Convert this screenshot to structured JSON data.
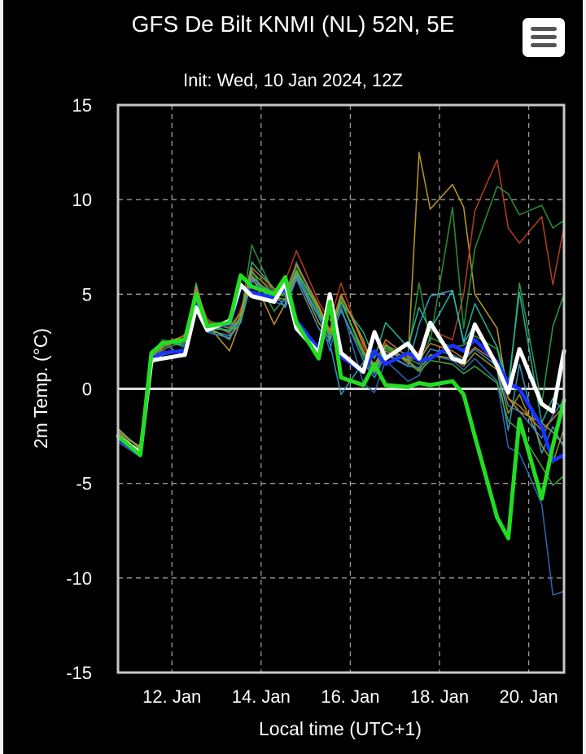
{
  "header": {
    "title": "GFS De Bilt KNMI (NL) 52N, 5E",
    "subtitle": "Init: Wed, 10 Jan 2024, 12Z"
  },
  "menu_button": {
    "icon": "hamburger-menu-icon"
  },
  "colors": {
    "background": "#000000",
    "plot_border": "#c8c8c8",
    "grid": "#9a9a9a",
    "zero_line": "#dddddd",
    "mean": "#ffffff",
    "control": "#22dd22",
    "operational": "#1a33ff"
  },
  "chart_data": {
    "type": "line",
    "title": "GFS De Bilt KNMI (NL) 52N, 5E",
    "subtitle": "Init: Wed, 10 Jan 2024, 12Z",
    "xlabel": "Local time (UTC+1)",
    "ylabel": "2m Temp. (°C)",
    "ylim": [
      -15,
      15
    ],
    "yticks": [
      -15,
      -10,
      -5,
      0,
      5,
      10,
      15
    ],
    "xlim": [
      "2024-01-10 19:00",
      "2024-01-20 19:00"
    ],
    "xticks": [
      {
        "date": "2024-01-12",
        "label": "12. Jan"
      },
      {
        "date": "2024-01-14",
        "label": "14. Jan"
      },
      {
        "date": "2024-01-16",
        "label": "16. Jan"
      },
      {
        "date": "2024-01-18",
        "label": "18. Jan"
      },
      {
        "date": "2024-01-20",
        "label": "20. Jan"
      }
    ],
    "grid": true,
    "x": [
      "2024-01-10 19:00",
      "2024-01-11 07:00",
      "2024-01-11 13:00",
      "2024-01-11 19:00",
      "2024-01-12 07:00",
      "2024-01-12 13:00",
      "2024-01-12 19:00",
      "2024-01-13 07:00",
      "2024-01-13 13:00",
      "2024-01-13 19:00",
      "2024-01-14 07:00",
      "2024-01-14 13:00",
      "2024-01-14 19:00",
      "2024-01-15 07:00",
      "2024-01-15 13:00",
      "2024-01-15 19:00",
      "2024-01-16 07:00",
      "2024-01-16 13:00",
      "2024-01-16 19:00",
      "2024-01-17 07:00",
      "2024-01-17 13:00",
      "2024-01-17 19:00",
      "2024-01-18 07:00",
      "2024-01-18 13:00",
      "2024-01-18 19:00",
      "2024-01-19 07:00",
      "2024-01-19 13:00",
      "2024-01-19 19:00",
      "2024-01-20 07:00",
      "2024-01-20 13:00",
      "2024-01-20 19:00"
    ],
    "series": [
      {
        "role": "member",
        "color": "#c8a030",
        "values": [
          -2.1,
          -3.2,
          1.4,
          2.2,
          2.7,
          5.2,
          3.4,
          2.0,
          3.6,
          6.0,
          3.4,
          4.5,
          6.0,
          3.5,
          2.6,
          4.6,
          2.0,
          1.0,
          2.0,
          1.5,
          12.5,
          9.5,
          10.8,
          9.6,
          5.0,
          3.2,
          -0.5,
          -1.2,
          -1.8,
          -2.3,
          -3.0
        ]
      },
      {
        "role": "member",
        "color": "#c04020",
        "values": [
          -2.3,
          -3.4,
          1.7,
          2.0,
          2.9,
          5.3,
          3.7,
          2.9,
          4.2,
          6.1,
          5.2,
          5.7,
          7.3,
          4.6,
          3.6,
          5.6,
          2.2,
          1.1,
          2.4,
          1.3,
          2.0,
          3.1,
          2.6,
          5.0,
          9.4,
          12.1,
          8.5,
          7.7,
          9.1,
          5.5,
          8.6
        ]
      },
      {
        "role": "member",
        "color": "#2a9a3a",
        "values": [
          -2.5,
          -3.0,
          1.8,
          2.6,
          2.2,
          5.6,
          3.3,
          3.1,
          3.8,
          7.6,
          5.0,
          5.0,
          6.5,
          4.3,
          2.7,
          4.1,
          1.8,
          1.3,
          2.3,
          1.8,
          5.6,
          2.5,
          9.6,
          3.2,
          7.4,
          10.7,
          10.3,
          9.2,
          9.7,
          8.5,
          8.9
        ]
      },
      {
        "role": "member",
        "color": "#30a050",
        "values": [
          -2.6,
          -3.3,
          1.5,
          2.1,
          2.5,
          4.7,
          3.6,
          3.3,
          4.0,
          6.3,
          4.1,
          4.8,
          6.2,
          4.2,
          2.9,
          4.8,
          1.7,
          0.9,
          2.1,
          1.6,
          1.3,
          2.7,
          2.2,
          2.3,
          2.8,
          2.1,
          -0.3,
          5.6,
          -0.8,
          3.3,
          5.0
        ]
      },
      {
        "role": "member",
        "color": "#3aa0c8",
        "values": [
          -2.7,
          -3.5,
          1.3,
          1.8,
          2.0,
          4.4,
          3.1,
          2.8,
          3.5,
          5.7,
          5.1,
          4.3,
          5.8,
          3.2,
          2.4,
          -0.3,
          1.4,
          0.6,
          1.8,
          1.2,
          3.4,
          4.9,
          5.2,
          2.4,
          3.4,
          1.0,
          -2.2,
          1.3,
          -3.4,
          -2.0,
          -3.1
        ]
      },
      {
        "role": "member",
        "color": "#2d70c0",
        "values": [
          -2.8,
          -3.6,
          1.6,
          2.4,
          1.7,
          4.9,
          3.4,
          3.0,
          3.8,
          6.0,
          4.7,
          4.6,
          6.7,
          4.0,
          2.0,
          4.4,
          0.3,
          -0.2,
          1.5,
          0.4,
          0.7,
          1.8,
          1.5,
          1.0,
          1.6,
          0.4,
          -3.1,
          -3.4,
          -6.1,
          -10.9,
          -10.7
        ]
      },
      {
        "role": "member",
        "color": "#28b8a0",
        "values": [
          -2.2,
          -3.1,
          1.9,
          2.5,
          2.3,
          5.5,
          3.2,
          3.1,
          3.7,
          6.7,
          5.3,
          5.0,
          6.1,
          3.9,
          3.1,
          4.6,
          3.0,
          1.6,
          3.5,
          2.2,
          4.3,
          3.1,
          5.2,
          2.5,
          4.5,
          2.2,
          0.2,
          5.1,
          -1.8,
          -0.5,
          -1.2
        ]
      },
      {
        "role": "member",
        "color": "#a0a030",
        "values": [
          -2.4,
          -3.3,
          1.6,
          2.3,
          2.6,
          5.1,
          3.3,
          2.6,
          3.9,
          5.9,
          4.9,
          4.7,
          6.2,
          4.3,
          2.9,
          4.9,
          2.6,
          0.9,
          2.3,
          1.5,
          1.0,
          1.8,
          1.6,
          1.2,
          1.9,
          1.0,
          -1.3,
          -0.3,
          -3.0,
          -3.9,
          -2.1
        ]
      },
      {
        "role": "member",
        "color": "#3c8cd8",
        "values": [
          -2.5,
          -3.4,
          1.4,
          1.9,
          2.1,
          4.6,
          3.0,
          2.7,
          3.5,
          5.8,
          4.6,
          4.4,
          5.9,
          3.8,
          2.5,
          4.2,
          1.5,
          0.8,
          1.9,
          1.2,
          1.1,
          2.1,
          1.8,
          1.5,
          2.1,
          1.2,
          -0.9,
          -1.2,
          -2.6,
          -1.4,
          -0.6
        ]
      },
      {
        "role": "member",
        "color": "#44b044",
        "values": [
          -2.6,
          -3.2,
          1.7,
          2.5,
          2.4,
          5.0,
          3.4,
          3.0,
          3.6,
          6.2,
          5.0,
          4.9,
          6.3,
          4.1,
          2.7,
          4.6,
          1.9,
          1.1,
          2.2,
          1.4,
          0.9,
          1.5,
          1.3,
          0.8,
          1.2,
          0.3,
          -1.7,
          -2.2,
          -4.1,
          -5.1,
          -4.6
        ]
      },
      {
        "role": "member",
        "color": "#d0802a",
        "values": [
          -2.3,
          -3.1,
          1.8,
          2.4,
          2.8,
          5.4,
          3.5,
          3.2,
          4.0,
          6.4,
          5.3,
          5.1,
          6.6,
          4.4,
          3.1,
          5.0,
          2.4,
          1.2,
          2.6,
          1.7,
          1.5,
          2.4,
          2.0,
          1.6,
          2.2,
          1.4,
          -0.5,
          -0.9,
          -2.2,
          -1.6,
          -0.9
        ]
      },
      {
        "role": "mean",
        "color": "#ffffff",
        "values": [
          -2.5,
          -3.4,
          1.5,
          1.6,
          1.8,
          4.3,
          3.1,
          3.6,
          5.5,
          4.9,
          4.6,
          5.6,
          3.2,
          1.9,
          5.0,
          1.9,
          0.9,
          3.0,
          1.6,
          2.4,
          1.6,
          3.5,
          1.6,
          1.4,
          3.4,
          1.2,
          -0.2,
          2.1,
          -0.8,
          -1.2,
          2.0
        ]
      },
      {
        "role": "operational",
        "color": "#1a33ff",
        "values": [
          -2.6,
          -3.5,
          1.6,
          1.9,
          2.0,
          4.8,
          3.3,
          3.4,
          5.4,
          5.1,
          4.8,
          5.3,
          3.6,
          2.1,
          4.9,
          1.7,
          0.9,
          2.0,
          1.3,
          1.9,
          1.5,
          1.6,
          2.3,
          2.0,
          2.6,
          1.4,
          0.3,
          0.0,
          -2.0,
          -3.8,
          -3.5
        ]
      },
      {
        "role": "control",
        "color": "#22dd22",
        "values": [
          -2.5,
          -3.5,
          1.9,
          2.4,
          2.6,
          5.0,
          3.3,
          3.5,
          6.0,
          5.4,
          5.0,
          5.9,
          3.5,
          1.6,
          4.6,
          0.6,
          0.2,
          1.3,
          0.2,
          0.1,
          0.3,
          0.2,
          0.4,
          -0.3,
          -2.5,
          -6.8,
          -7.9,
          -1.6,
          -5.8,
          -3.0,
          -0.6
        ]
      }
    ]
  }
}
